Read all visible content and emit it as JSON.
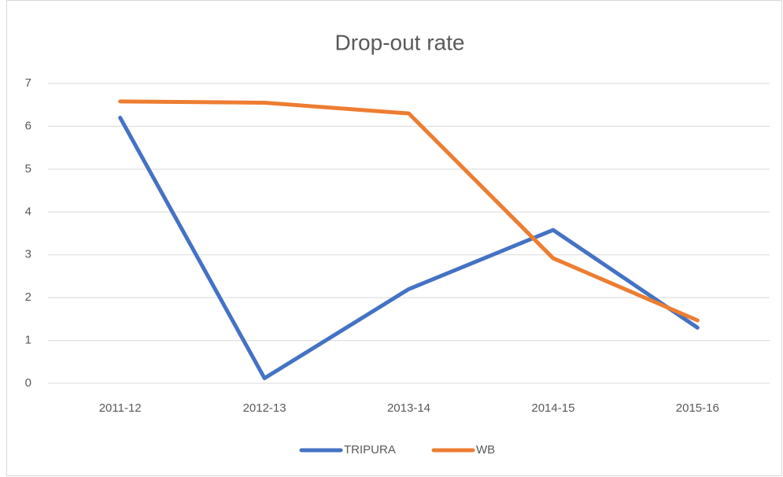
{
  "chart_data": {
    "type": "line",
    "title": "Drop-out rate",
    "categories": [
      "2011-12",
      "2012-13",
      "2013-14",
      "2014-15",
      "2015-16"
    ],
    "series": [
      {
        "name": "TRIPURA",
        "color": "#4472c4",
        "values": [
          6.2,
          0.12,
          2.2,
          3.58,
          1.3
        ]
      },
      {
        "name": "WB",
        "color": "#ed7d31",
        "values": [
          6.58,
          6.55,
          6.3,
          2.92,
          1.47
        ]
      }
    ],
    "ylim": [
      0,
      7
    ],
    "yticks": [
      0,
      1,
      2,
      3,
      4,
      5,
      6,
      7
    ],
    "grid": true,
    "legend": "bottom"
  }
}
